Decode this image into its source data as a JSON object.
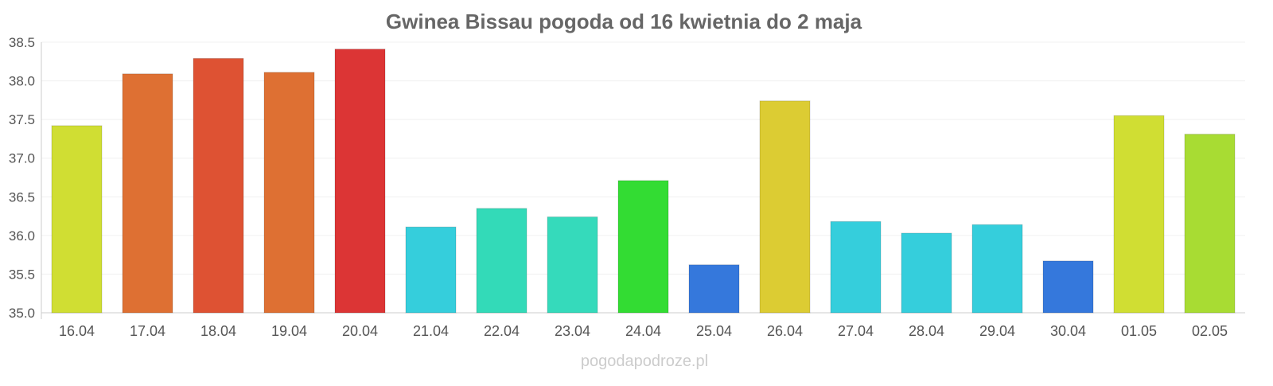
{
  "chart_data": {
    "type": "bar",
    "title": "Gwinea Bissau pogoda od 16 kwietnia do 2 maja",
    "xlabel": "",
    "ylabel": "",
    "ylim": [
      35.0,
      38.5
    ],
    "yticks": [
      "35.0",
      "35.5",
      "36.0",
      "36.5",
      "37.0",
      "37.5",
      "38.0",
      "38.5"
    ],
    "grid": true,
    "categories": [
      "16.04",
      "17.04",
      "18.04",
      "19.04",
      "20.04",
      "21.04",
      "22.04",
      "23.04",
      "24.04",
      "25.04",
      "26.04",
      "27.04",
      "28.04",
      "29.04",
      "30.04",
      "01.05",
      "02.05"
    ],
    "values": [
      37.42,
      38.09,
      38.29,
      38.11,
      38.41,
      36.11,
      36.35,
      36.24,
      36.71,
      35.62,
      37.74,
      36.18,
      36.03,
      36.14,
      35.67,
      37.55,
      37.31
    ],
    "colors": [
      "#d0de33",
      "#de7033",
      "#de5233",
      "#de7033",
      "#dc3535",
      "#35cedc",
      "#33dab8",
      "#35dabb",
      "#33dc33",
      "#3578dc",
      "#dccc33",
      "#35cedc",
      "#35cedc",
      "#35cedc",
      "#3578dc",
      "#d0de33",
      "#a8dc33"
    ],
    "watermark": "pogodapodroze.pl"
  }
}
